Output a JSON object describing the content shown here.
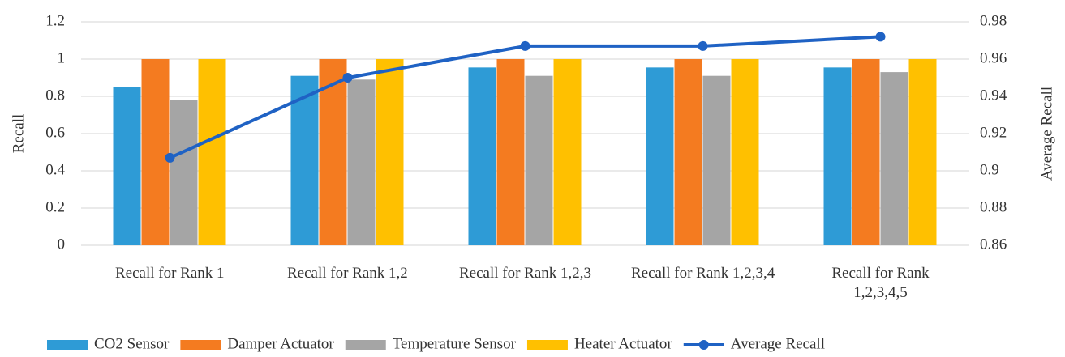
{
  "chart_data": {
    "type": "bar",
    "categories": [
      "Recall for Rank 1",
      "Recall for Rank 1,2",
      "Recall for Rank 1,2,3",
      "Recall for Rank 1,2,3,4",
      "Recall for Rank 1,2,3,4,5"
    ],
    "series": [
      {
        "name": "CO2 Sensor",
        "color": "#2e9bd6",
        "values": [
          0.85,
          0.91,
          0.955,
          0.955,
          0.955
        ]
      },
      {
        "name": "Damper Actuator",
        "color": "#f47b20",
        "values": [
          1,
          1,
          1,
          1,
          1
        ]
      },
      {
        "name": "Temperature Sensor",
        "color": "#a5a5a5",
        "values": [
          0.78,
          0.89,
          0.91,
          0.91,
          0.93
        ]
      },
      {
        "name": "Heater Actuator",
        "color": "#ffc000",
        "values": [
          1,
          1,
          1,
          1,
          1
        ]
      },
      {
        "name": "Average Recall",
        "color": "#1f62c4",
        "type": "line",
        "axis": "y2",
        "values": [
          0.907,
          0.95,
          0.967,
          0.967,
          0.972
        ]
      }
    ],
    "y_label": "Recall",
    "y2_label": "Average Recall",
    "ylim": [
      0,
      1.2
    ],
    "yticks": [
      0,
      0.2,
      0.4,
      0.6,
      0.8,
      1,
      1.2
    ],
    "y2lim": [
      0.86,
      0.98
    ],
    "y2ticks": [
      0.86,
      0.88,
      0.9,
      0.92,
      0.94,
      0.96,
      0.98
    ],
    "grid": true,
    "legend": "bottom"
  }
}
